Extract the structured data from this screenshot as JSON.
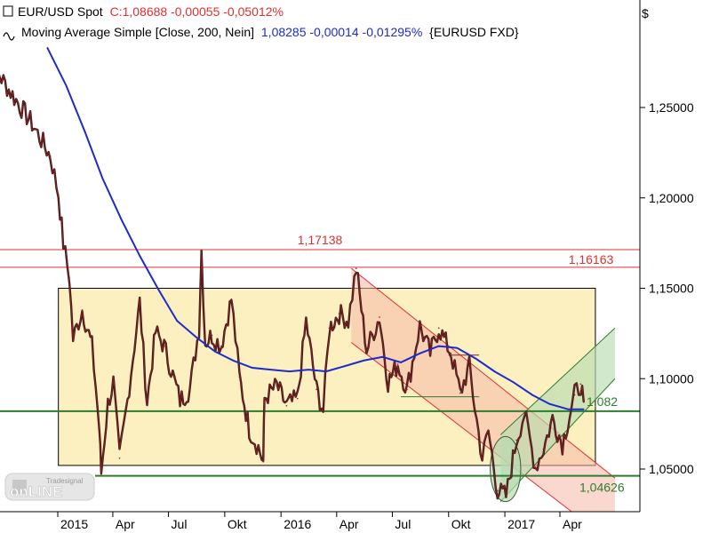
{
  "header": {
    "line1": {
      "instrument": "EUR/USD Spot",
      "values": "C:1,08688 -0,00055 -0,05012%"
    },
    "line2": {
      "indicator": "Moving Average Simple [Close, 200, Nein]",
      "values": "1,08285 -0,00014 -0,01295%",
      "symbol": "{EURUSD FXD}"
    }
  },
  "currency_symbol": "$",
  "watermark": "Tradesignal online",
  "colors": {
    "candle": "#8b1a1a",
    "moving_average": "#1e2bcc",
    "support": "#2e7d2e",
    "resistance": "#e03030",
    "range_box": "#fdf0c0",
    "down_channel": "#f6b8a8",
    "up_channel": "#b8dcb0"
  },
  "chart_data": {
    "type": "line",
    "title": "EUR/USD Spot",
    "ylabel": "$",
    "ylim": [
      1.026,
      1.285
    ],
    "x_ticks": [
      {
        "date": "2015-01",
        "label": "2015"
      },
      {
        "date": "2015-04",
        "label": "Apr"
      },
      {
        "date": "2015-07",
        "label": "Jul"
      },
      {
        "date": "2015-10",
        "label": "Okt"
      },
      {
        "date": "2016-01",
        "label": "2016"
      },
      {
        "date": "2016-04",
        "label": "Apr"
      },
      {
        "date": "2016-07",
        "label": "Jul"
      },
      {
        "date": "2016-10",
        "label": "Okt"
      },
      {
        "date": "2017-01",
        "label": "2017"
      },
      {
        "date": "2017-04",
        "label": "Apr"
      }
    ],
    "y_ticks": [
      1.05,
      1.1,
      1.15,
      1.2,
      1.25
    ],
    "y_tick_labels": [
      "1,05000",
      "1,10000",
      "1,15000",
      "1,20000",
      "1,25000"
    ],
    "series": [
      {
        "name": "EUR/USD Spot",
        "points": [
          [
            "2014-09-01",
            1.285
          ],
          [
            "2014-10-01",
            1.266
          ],
          [
            "2014-10-25",
            1.254
          ],
          [
            "2014-11-20",
            1.241
          ],
          [
            "2014-12-20",
            1.223
          ],
          [
            "2015-01-02",
            1.202
          ],
          [
            "2015-01-10",
            1.175
          ],
          [
            "2015-01-20",
            1.156
          ],
          [
            "2015-01-26",
            1.122
          ],
          [
            "2015-02-10",
            1.138
          ],
          [
            "2015-02-26",
            1.118
          ],
          [
            "2015-03-04",
            1.096
          ],
          [
            "2015-03-10",
            1.072
          ],
          [
            "2015-03-13",
            1.048
          ],
          [
            "2015-03-24",
            1.086
          ],
          [
            "2015-04-02",
            1.098
          ],
          [
            "2015-04-12",
            1.056
          ],
          [
            "2015-04-25",
            1.088
          ],
          [
            "2015-05-15",
            1.142
          ],
          [
            "2015-05-27",
            1.087
          ],
          [
            "2015-06-10",
            1.126
          ],
          [
            "2015-06-24",
            1.118
          ],
          [
            "2015-07-08",
            1.102
          ],
          [
            "2015-07-20",
            1.088
          ],
          [
            "2015-08-05",
            1.094
          ],
          [
            "2015-08-20",
            1.128
          ],
          [
            "2015-08-24",
            1.171
          ],
          [
            "2015-08-30",
            1.12
          ],
          [
            "2015-09-10",
            1.124
          ],
          [
            "2015-09-25",
            1.118
          ],
          [
            "2015-10-12",
            1.144
          ],
          [
            "2015-10-25",
            1.101
          ],
          [
            "2015-11-10",
            1.072
          ],
          [
            "2015-11-25",
            1.062
          ],
          [
            "2015-12-03",
            1.054
          ],
          [
            "2015-12-05",
            1.089
          ],
          [
            "2015-12-25",
            1.096
          ],
          [
            "2016-01-10",
            1.085
          ],
          [
            "2016-01-28",
            1.089
          ],
          [
            "2016-02-11",
            1.132
          ],
          [
            "2016-02-28",
            1.094
          ],
          [
            "2016-03-10",
            1.082
          ],
          [
            "2016-03-20",
            1.128
          ],
          [
            "2016-04-05",
            1.136
          ],
          [
            "2016-04-20",
            1.132
          ],
          [
            "2016-05-03",
            1.161
          ],
          [
            "2016-05-20",
            1.116
          ],
          [
            "2016-06-10",
            1.134
          ],
          [
            "2016-06-24",
            1.098
          ],
          [
            "2016-07-10",
            1.108
          ],
          [
            "2016-07-25",
            1.094
          ],
          [
            "2016-08-15",
            1.129
          ],
          [
            "2016-09-01",
            1.114
          ],
          [
            "2016-09-15",
            1.128
          ],
          [
            "2016-10-05",
            1.114
          ],
          [
            "2016-10-20",
            1.092
          ],
          [
            "2016-11-04",
            1.107
          ],
          [
            "2016-11-10",
            1.091
          ],
          [
            "2016-11-25",
            1.056
          ],
          [
            "2016-12-05",
            1.071
          ],
          [
            "2016-12-20",
            1.038
          ],
          [
            "2017-01-03",
            1.035
          ],
          [
            "2017-01-20",
            1.066
          ],
          [
            "2017-02-02",
            1.081
          ],
          [
            "2017-02-20",
            1.051
          ],
          [
            "2017-03-05",
            1.061
          ],
          [
            "2017-03-20",
            1.078
          ],
          [
            "2017-04-05",
            1.064
          ],
          [
            "2017-04-25",
            1.091
          ],
          [
            "2017-05-05",
            1.097
          ],
          [
            "2017-05-10",
            1.087
          ]
        ]
      },
      {
        "name": "Moving Average Simple [Close, 200, Nein]",
        "points": [
          [
            "2014-12-15",
            1.283
          ],
          [
            "2015-01-15",
            1.262
          ],
          [
            "2015-02-15",
            1.236
          ],
          [
            "2015-03-15",
            1.211
          ],
          [
            "2015-04-15",
            1.188
          ],
          [
            "2015-05-15",
            1.168
          ],
          [
            "2015-06-15",
            1.149
          ],
          [
            "2015-07-15",
            1.132
          ],
          [
            "2015-08-15",
            1.123
          ],
          [
            "2015-09-15",
            1.115
          ],
          [
            "2015-10-15",
            1.11
          ],
          [
            "2015-11-15",
            1.106
          ],
          [
            "2015-12-15",
            1.105
          ],
          [
            "2016-01-15",
            1.104
          ],
          [
            "2016-02-15",
            1.105
          ],
          [
            "2016-03-15",
            1.104
          ],
          [
            "2016-04-15",
            1.107
          ],
          [
            "2016-05-15",
            1.11
          ],
          [
            "2016-06-15",
            1.112
          ],
          [
            "2016-07-15",
            1.109
          ],
          [
            "2016-08-15",
            1.114
          ],
          [
            "2016-09-15",
            1.118
          ],
          [
            "2016-10-15",
            1.117
          ],
          [
            "2016-11-15",
            1.111
          ],
          [
            "2016-12-15",
            1.104
          ],
          [
            "2017-01-15",
            1.098
          ],
          [
            "2017-02-15",
            1.091
          ],
          [
            "2017-03-15",
            1.086
          ],
          [
            "2017-04-15",
            1.083
          ],
          [
            "2017-05-10",
            1.083
          ]
        ]
      }
    ],
    "horizontal_levels": [
      {
        "value": 1.17138,
        "label": "1,17138",
        "color": "#e03030"
      },
      {
        "value": 1.16163,
        "label": "1,16163",
        "color": "#e03030"
      },
      {
        "value": 1.082,
        "label": "1,082",
        "color": "#2e7d2e"
      },
      {
        "value": 1.04626,
        "label": "1,04626",
        "color": "#2e7d2e"
      }
    ],
    "zones": {
      "range_box": {
        "from": "2015-01-02",
        "to": "2017-05-29",
        "low": 1.052,
        "high": 1.15
      },
      "down_channel": {
        "upper_start": [
          "2016-04-25",
          1.161
        ],
        "upper_end": [
          "2017-06-30",
          1.045
        ],
        "lower_start": [
          "2016-04-25",
          1.12
        ],
        "lower_end": [
          "2017-06-30",
          1.008
        ]
      },
      "up_channel": {
        "lower_start": [
          "2016-12-25",
          1.032
        ],
        "lower_end": [
          "2017-06-30",
          1.1
        ],
        "upper_start": [
          "2016-12-25",
          1.069
        ],
        "upper_end": [
          "2017-06-30",
          1.128
        ]
      },
      "bottom_ellipse": {
        "center": [
          "2017-01-02",
          1.05
        ],
        "rx_days": 25,
        "ry_value": 0.018
      },
      "sub_lines": [
        {
          "from": "2016-07-15",
          "to": "2016-11-20",
          "value": 1.09
        },
        {
          "from": "2016-10-01",
          "to": "2016-11-20",
          "value": 1.113
        }
      ]
    }
  }
}
